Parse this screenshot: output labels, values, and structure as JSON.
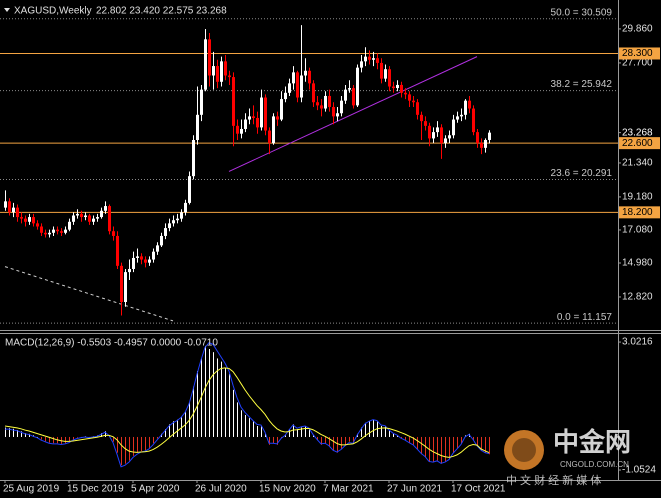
{
  "chart_data": {
    "type": "candlestick",
    "title": "XAGUSD,Weekly",
    "ohlc_text": "22.802 23.420 22.575 23.268",
    "up_color": "#ffffff",
    "down_color": "#ff0000",
    "categories": [
      "25 Aug 2019",
      null,
      null,
      null,
      null,
      null,
      null,
      null,
      null,
      null,
      null,
      null,
      null,
      null,
      null,
      null,
      "15 Dec 2019",
      null,
      null,
      null,
      null,
      null,
      null,
      null,
      null,
      null,
      null,
      null,
      null,
      null,
      null,
      null,
      "5 Apr 2020",
      null,
      null,
      null,
      null,
      null,
      null,
      null,
      null,
      null,
      null,
      null,
      null,
      null,
      null,
      null,
      "26 Jul 2020",
      null,
      null,
      null,
      null,
      null,
      null,
      null,
      null,
      null,
      null,
      null,
      null,
      null,
      null,
      null,
      "15 Nov 2020",
      null,
      null,
      null,
      null,
      null,
      null,
      null,
      null,
      null,
      null,
      null,
      null,
      null,
      null,
      null,
      "7 Mar 2021",
      null,
      null,
      null,
      null,
      null,
      null,
      null,
      null,
      null,
      null,
      null,
      null,
      null,
      null,
      null,
      "27 Jun 2021",
      null,
      null,
      null,
      null,
      null,
      null,
      null,
      null,
      null,
      null,
      null,
      null,
      null,
      null,
      null,
      "17 Oct 2021",
      null,
      null,
      null,
      null,
      null,
      null,
      null,
      null,
      null
    ],
    "open": [
      18.5,
      18.9,
      18.2,
      18.5,
      17.9,
      17.8,
      17.6,
      17.9,
      17.5,
      17.3,
      16.9,
      16.8,
      16.9,
      17.1,
      17.0,
      16.9,
      17.1,
      17.6,
      18.0,
      18.1,
      17.9,
      18.0,
      17.6,
      17.8,
      17.9,
      18.3,
      18.6,
      17.0,
      16.7,
      14.8,
      12.5,
      14.4,
      14.6,
      15.3,
      15.4,
      15.2,
      15.0,
      15.2,
      15.7,
      16.1,
      16.7,
      17.2,
      17.5,
      17.7,
      17.8,
      18.2,
      18.8,
      20.5,
      22.8,
      24.4,
      26.0,
      29.2,
      26.9,
      27.5,
      26.5,
      27.8,
      26.9,
      26.8,
      23.7,
      23.2,
      23.5,
      24.1,
      24.3,
      24.2,
      23.6,
      25.5,
      23.4,
      22.6,
      24.3,
      24.1,
      25.4,
      25.8,
      26.4,
      27.1,
      25.5,
      26.9,
      27.2,
      26.4,
      25.2,
      25.0,
      24.8,
      25.6,
      24.9,
      24.3,
      24.5,
      25.3,
      26.0,
      26.1,
      25.0,
      27.4,
      27.8,
      28.1,
      27.9,
      28.0,
      27.7,
      26.7,
      27.3,
      26.2,
      26.1,
      26.3,
      25.8,
      25.7,
      25.3,
      25.2,
      24.4,
      24.0,
      23.7,
      22.9,
      23.3,
      23.6,
      22.6,
      22.9,
      23.1,
      24.1,
      24.3,
      24.4,
      25.3,
      24.8,
      23.3,
      22.6,
      22.3,
      22.802
    ],
    "high": [
      19.6,
      19.1,
      18.8,
      18.7,
      18.2,
      18.0,
      18.1,
      18.1,
      17.7,
      17.5,
      17.1,
      17.1,
      17.3,
      17.3,
      17.2,
      17.3,
      17.8,
      18.2,
      18.4,
      18.3,
      18.2,
      18.1,
      18.0,
      18.1,
      18.5,
      18.9,
      18.7,
      17.3,
      17.0,
      15.0,
      14.6,
      15.2,
      15.7,
      15.9,
      15.6,
      15.4,
      15.4,
      15.9,
      16.3,
      16.9,
      17.5,
      17.8,
      18.0,
      18.1,
      18.4,
      19.0,
      20.8,
      23.1,
      26.2,
      26.3,
      29.86,
      29.6,
      28.4,
      27.9,
      28.1,
      28.2,
      27.2,
      27.1,
      24.1,
      24.1,
      24.5,
      24.8,
      25.0,
      24.6,
      26.0,
      25.7,
      23.6,
      24.5,
      24.6,
      25.9,
      26.2,
      26.7,
      27.5,
      27.2,
      30.1,
      28.0,
      27.4,
      26.6,
      25.6,
      25.4,
      25.9,
      26.0,
      25.2,
      24.9,
      25.6,
      26.3,
      26.6,
      26.3,
      27.6,
      28.2,
      28.7,
      28.5,
      28.4,
      28.3,
      28.0,
      27.6,
      27.5,
      26.5,
      26.6,
      26.5,
      26.1,
      25.9,
      25.6,
      25.4,
      24.6,
      24.3,
      23.9,
      23.6,
      24.0,
      23.8,
      23.1,
      23.4,
      24.4,
      24.6,
      24.8,
      25.4,
      25.6,
      25.0,
      23.5,
      22.9,
      22.9,
      23.42
    ],
    "low": [
      18.3,
      18.0,
      17.9,
      17.6,
      17.5,
      17.3,
      17.4,
      17.3,
      17.1,
      16.7,
      16.6,
      16.6,
      16.7,
      16.8,
      16.7,
      16.8,
      17.0,
      17.4,
      17.8,
      17.6,
      17.7,
      17.4,
      17.4,
      17.6,
      17.8,
      18.1,
      16.8,
      16.4,
      14.6,
      11.64,
      12.2,
      13.9,
      14.4,
      15.0,
      14.9,
      14.7,
      14.8,
      15.0,
      15.5,
      16.0,
      16.5,
      17.0,
      17.3,
      17.5,
      17.6,
      18.0,
      18.7,
      20.3,
      22.5,
      24.0,
      25.9,
      26.2,
      26.0,
      26.1,
      26.2,
      26.6,
      26.3,
      22.4,
      22.8,
      22.9,
      23.3,
      23.8,
      23.8,
      23.2,
      23.4,
      23.1,
      21.9,
      22.5,
      23.7,
      24.0,
      25.2,
      25.6,
      26.0,
      25.2,
      25.2,
      26.5,
      26.0,
      24.9,
      24.7,
      24.3,
      24.6,
      24.6,
      23.8,
      24.0,
      24.3,
      25.1,
      25.8,
      24.8,
      24.9,
      27.1,
      27.5,
      27.6,
      27.5,
      27.3,
      26.4,
      26.5,
      25.9,
      25.8,
      25.9,
      25.5,
      25.4,
      24.9,
      24.9,
      24.1,
      22.8,
      23.4,
      22.4,
      22.6,
      23.0,
      21.6,
      22.3,
      22.6,
      22.9,
      23.9,
      24.0,
      24.1,
      24.5,
      23.1,
      22.3,
      21.9,
      22.0,
      22.575
    ],
    "close": [
      18.9,
      18.2,
      18.5,
      17.9,
      17.8,
      17.6,
      17.9,
      17.5,
      17.3,
      16.9,
      16.8,
      16.9,
      17.1,
      17.0,
      16.9,
      17.1,
      17.6,
      18.0,
      18.1,
      17.9,
      18.0,
      17.6,
      17.8,
      17.9,
      18.3,
      18.6,
      17.0,
      16.7,
      14.8,
      12.5,
      14.4,
      14.6,
      15.3,
      15.4,
      15.2,
      15.0,
      15.2,
      15.7,
      16.1,
      16.7,
      17.2,
      17.5,
      17.7,
      17.8,
      18.2,
      18.8,
      20.5,
      22.8,
      24.4,
      26.0,
      29.2,
      26.9,
      27.5,
      26.5,
      27.8,
      26.9,
      26.8,
      23.7,
      23.2,
      23.5,
      24.1,
      24.3,
      24.2,
      23.6,
      25.5,
      23.4,
      22.6,
      24.3,
      24.1,
      25.4,
      25.8,
      26.4,
      27.1,
      25.5,
      26.9,
      27.2,
      26.4,
      25.2,
      25.0,
      24.8,
      25.6,
      24.9,
      24.3,
      24.5,
      25.3,
      26.0,
      26.1,
      25.0,
      27.4,
      27.8,
      28.1,
      27.9,
      28.0,
      27.7,
      26.7,
      27.3,
      26.2,
      26.1,
      26.3,
      25.8,
      25.7,
      25.3,
      25.2,
      24.4,
      24.0,
      23.7,
      22.9,
      23.3,
      23.6,
      22.6,
      22.9,
      23.1,
      24.1,
      24.3,
      24.4,
      25.3,
      24.8,
      23.3,
      22.6,
      22.3,
      22.802,
      23.268
    ],
    "ylim": [
      10.72,
      31.7
    ],
    "yticks": [
      {
        "value": 29.86,
        "label": "29.860"
      },
      {
        "value": 27.7,
        "label": "27.700"
      },
      {
        "value": 21.34,
        "label": "21.340"
      },
      {
        "value": 19.18,
        "label": "19.180"
      },
      {
        "value": 17.08,
        "label": "17.080"
      },
      {
        "value": 14.98,
        "label": "14.980"
      },
      {
        "value": 12.82,
        "label": "12.820"
      }
    ],
    "levels": [
      {
        "value": 28.3,
        "label": "28.300",
        "color": "#f4a442"
      },
      {
        "value": 22.6,
        "label": "22.600",
        "color": "#f4a442"
      },
      {
        "value": 18.2,
        "label": "18.200",
        "color": "#f4a442"
      }
    ],
    "last_price": {
      "value": 23.268,
      "label": "23.268"
    },
    "fib_levels": [
      {
        "value": 30.509,
        "label": "50.0 = 30.509"
      },
      {
        "value": 25.942,
        "label": "38.2 = 25.942"
      },
      {
        "value": 20.291,
        "label": "23.6 = 20.291"
      },
      {
        "value": 11.157,
        "label": "0.0 = 11.157"
      }
    ],
    "fib_color": "#8a8a8a",
    "trend_line": {
      "x": [
        56,
        118
      ],
      "y": [
        20.8,
        28.1
      ],
      "color": "#b030e0"
    },
    "dashed_line": {
      "x": [
        0,
        42
      ],
      "y": [
        14.75,
        11.3
      ],
      "color": "#d0d0d0"
    },
    "macd": {
      "title": "MACD(12,26,9) -0.5503 -0.4957 0.0000 -0.0710",
      "ylim": [
        -1.37,
        3.31
      ],
      "yticks": [
        3.0216,
        -1.0524
      ],
      "up_color": "#ffffff",
      "down_color": "#e03020",
      "signal_color": "#ffff40",
      "line_color": "#2040ff",
      "histogram": [
        0.3,
        0.28,
        0.26,
        0.22,
        0.18,
        0.12,
        0.1,
        0.05,
        0.0,
        -0.08,
        -0.14,
        -0.18,
        -0.2,
        -0.2,
        -0.22,
        -0.2,
        -0.15,
        -0.08,
        -0.02,
        0.0,
        0.02,
        0.0,
        0.02,
        0.05,
        0.12,
        0.18,
        0.05,
        -0.15,
        -0.5,
        -0.9,
        -0.85,
        -0.75,
        -0.6,
        -0.5,
        -0.45,
        -0.42,
        -0.35,
        -0.2,
        -0.05,
        0.1,
        0.25,
        0.4,
        0.5,
        0.55,
        0.65,
        0.8,
        1.1,
        1.6,
        2.1,
        2.5,
        2.9,
        2.8,
        2.7,
        2.5,
        2.4,
        2.2,
        2.0,
        1.5,
        1.1,
        0.85,
        0.7,
        0.6,
        0.5,
        0.35,
        0.35,
        0.1,
        -0.25,
        -0.2,
        -0.25,
        -0.05,
        0.05,
        0.25,
        0.4,
        0.25,
        0.3,
        0.35,
        0.25,
        0.05,
        -0.1,
        -0.25,
        -0.2,
        -0.3,
        -0.45,
        -0.5,
        -0.4,
        -0.25,
        -0.15,
        -0.2,
        0.1,
        0.3,
        0.45,
        0.5,
        0.55,
        0.5,
        0.35,
        0.35,
        0.2,
        0.1,
        0.05,
        -0.05,
        -0.1,
        -0.2,
        -0.25,
        -0.4,
        -0.55,
        -0.65,
        -0.8,
        -0.8,
        -0.75,
        -0.85,
        -0.8,
        -0.7,
        -0.5,
        -0.35,
        -0.2,
        0.05,
        0.1,
        -0.1,
        -0.3,
        -0.45,
        -0.5,
        -0.5503
      ],
      "signal": [
        0.35,
        0.33,
        0.31,
        0.29,
        0.26,
        0.22,
        0.19,
        0.15,
        0.11,
        0.07,
        0.03,
        -0.01,
        -0.05,
        -0.09,
        -0.12,
        -0.14,
        -0.14,
        -0.13,
        -0.11,
        -0.09,
        -0.07,
        -0.05,
        -0.03,
        -0.01,
        0.02,
        0.05,
        0.05,
        0.01,
        -0.09,
        -0.25,
        -0.37,
        -0.45,
        -0.48,
        -0.49,
        -0.48,
        -0.47,
        -0.45,
        -0.4,
        -0.33,
        -0.24,
        -0.14,
        -0.03,
        0.08,
        0.18,
        0.28,
        0.38,
        0.52,
        0.72,
        0.97,
        1.25,
        1.55,
        1.8,
        1.98,
        2.1,
        2.18,
        2.2,
        2.18,
        2.08,
        1.9,
        1.7,
        1.5,
        1.32,
        1.16,
        1.0,
        0.87,
        0.72,
        0.53,
        0.38,
        0.26,
        0.19,
        0.16,
        0.17,
        0.22,
        0.23,
        0.25,
        0.27,
        0.27,
        0.23,
        0.16,
        0.08,
        0.02,
        -0.05,
        -0.13,
        -0.21,
        -0.25,
        -0.25,
        -0.23,
        -0.22,
        -0.16,
        -0.07,
        0.03,
        0.12,
        0.2,
        0.26,
        0.28,
        0.29,
        0.27,
        0.23,
        0.19,
        0.14,
        0.09,
        0.03,
        -0.03,
        -0.11,
        -0.2,
        -0.29,
        -0.39,
        -0.47,
        -0.53,
        -0.59,
        -0.63,
        -0.65,
        -0.62,
        -0.57,
        -0.49,
        -0.38,
        -0.28,
        -0.24,
        -0.26,
        -0.38,
        -0.44,
        -0.4957
      ],
      "line": [
        0.25,
        0.25,
        0.22,
        0.2,
        0.15,
        0.1,
        0.08,
        0.02,
        -0.02,
        -0.1,
        -0.15,
        -0.2,
        -0.22,
        -0.22,
        -0.24,
        -0.22,
        -0.18,
        -0.1,
        -0.05,
        -0.02,
        0.0,
        -0.02,
        0.0,
        0.02,
        0.08,
        0.15,
        0.05,
        -0.18,
        -0.55,
        -0.95,
        -0.9,
        -0.8,
        -0.65,
        -0.55,
        -0.48,
        -0.45,
        -0.38,
        -0.25,
        -0.1,
        0.05,
        0.2,
        0.35,
        0.45,
        0.52,
        0.62,
        0.78,
        1.05,
        1.5,
        2.0,
        2.45,
        2.85,
        3.0,
        2.95,
        2.75,
        2.55,
        2.35,
        2.1,
        1.65,
        1.25,
        0.95,
        0.78,
        0.65,
        0.52,
        0.4,
        0.38,
        0.15,
        -0.2,
        -0.2,
        -0.22,
        -0.05,
        0.05,
        0.22,
        0.38,
        0.28,
        0.32,
        0.35,
        0.28,
        0.08,
        -0.08,
        -0.22,
        -0.2,
        -0.28,
        -0.42,
        -0.48,
        -0.4,
        -0.28,
        -0.18,
        -0.2,
        0.05,
        0.25,
        0.42,
        0.5,
        0.55,
        0.52,
        0.38,
        0.36,
        0.22,
        0.12,
        0.06,
        -0.04,
        -0.1,
        -0.18,
        -0.25,
        -0.38,
        -0.52,
        -0.62,
        -0.78,
        -0.8,
        -0.76,
        -0.84,
        -0.8,
        -0.72,
        -0.52,
        -0.38,
        -0.24,
        0.0,
        0.08,
        -0.08,
        -0.28,
        -0.42,
        -0.5,
        -0.53
      ]
    },
    "watermark": {
      "brand": "中金网",
      "site": "CNGOLD.COM.CN",
      "slogan": "中 文 财 经 新 媒 体"
    }
  }
}
